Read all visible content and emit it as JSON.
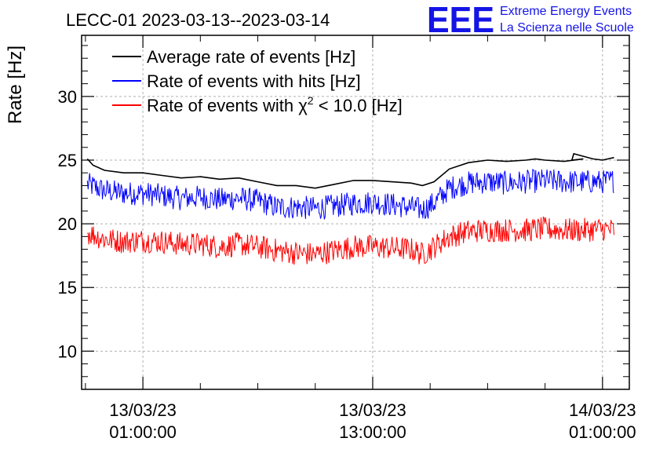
{
  "chart_data": {
    "type": "line",
    "title": "LECC-01 2023-03-13--2023-03-14",
    "ylabel": "Rate [Hz]",
    "xlabel": "",
    "ylim": [
      7,
      34.8
    ],
    "yticks": [
      10,
      15,
      20,
      25,
      30
    ],
    "xlim_hours": [
      -3.2,
      25.4
    ],
    "xticks": [
      {
        "hour": 0,
        "line1": "13/03/23",
        "line2": "01:00:00"
      },
      {
        "hour": 12,
        "line1": "13/03/23",
        "line2": "13:00:00"
      },
      {
        "hour": 24,
        "line1": "14/03/23",
        "line2": "01:00:00"
      }
    ],
    "grid": true,
    "legend_position": "top-left",
    "series": [
      {
        "name": "Average rate of events [Hz]",
        "color": "#000000",
        "x": [
          -2.9,
          -2.6,
          -2.0,
          -1.0,
          0.0,
          1.0,
          2.0,
          3.0,
          4.0,
          5.0,
          6.0,
          7.0,
          8.0,
          9.0,
          10.0,
          11.0,
          12.0,
          13.0,
          14.0,
          14.6,
          15.2,
          16.0,
          17.0,
          18.0,
          19.0,
          20.0,
          20.5,
          21.0,
          22.0,
          23.0,
          22.4,
          22.5,
          23.5,
          24.0,
          24.6
        ],
        "y": [
          25.1,
          24.6,
          24.2,
          24.0,
          24.0,
          23.8,
          23.6,
          23.7,
          23.5,
          23.6,
          23.3,
          23.0,
          23.0,
          22.8,
          23.1,
          23.4,
          23.4,
          23.3,
          23.2,
          23.0,
          23.3,
          24.3,
          24.8,
          25.0,
          24.9,
          25.0,
          25.1,
          25.0,
          24.9,
          25.1,
          25.0,
          25.5,
          25.1,
          25.0,
          25.2
        ]
      },
      {
        "name": "Rate of events with hits [Hz]",
        "color": "#0000ff",
        "x": [
          -2.9,
          -2.0,
          -1.0,
          0.0,
          1.0,
          2.0,
          3.0,
          4.0,
          5.0,
          6.0,
          7.0,
          8.0,
          9.0,
          10.0,
          11.0,
          12.0,
          13.0,
          14.0,
          14.6,
          15.2,
          16.0,
          17.0,
          18.0,
          19.0,
          20.0,
          21.0,
          22.0,
          23.0,
          24.0,
          24.6
        ],
        "y": [
          23.1,
          22.6,
          22.4,
          22.4,
          22.2,
          22.0,
          22.1,
          21.9,
          22.0,
          21.8,
          21.3,
          21.3,
          21.2,
          21.4,
          21.6,
          21.7,
          21.5,
          21.3,
          21.1,
          21.6,
          22.8,
          23.2,
          23.3,
          23.2,
          23.3,
          23.4,
          23.3,
          23.3,
          23.3,
          23.4
        ]
      },
      {
        "name": "Rate of events with χ² < 10.0 [Hz]",
        "color": "#ff0000",
        "x": [
          -2.9,
          -2.0,
          -1.0,
          0.0,
          1.0,
          2.0,
          3.0,
          4.0,
          5.0,
          6.0,
          7.0,
          8.0,
          9.0,
          10.0,
          11.0,
          12.0,
          13.0,
          14.0,
          14.6,
          15.2,
          16.0,
          17.0,
          18.0,
          19.0,
          20.0,
          21.0,
          22.0,
          23.0,
          24.0,
          24.6
        ],
        "y": [
          19.3,
          18.8,
          18.6,
          18.7,
          18.6,
          18.4,
          18.4,
          18.2,
          18.4,
          18.2,
          17.9,
          17.7,
          17.6,
          17.9,
          18.2,
          18.2,
          18.1,
          18.0,
          17.6,
          18.2,
          19.0,
          19.4,
          19.5,
          19.5,
          19.5,
          19.6,
          19.5,
          19.5,
          19.6,
          19.5
        ]
      }
    ]
  },
  "logo": {
    "letters": "EEE",
    "line1": "Extreme Energy Events",
    "line2": "La Scienza nelle Scuole"
  },
  "legend": [
    {
      "label": "Average rate of events [Hz]",
      "color": "#000000"
    },
    {
      "label": "Rate of events with hits [Hz]",
      "color": "#0000ff"
    },
    {
      "label_pre": "Rate of events with ",
      "chi": "χ",
      "sup": "2",
      "label_post": " < 10.0 [Hz]",
      "color": "#ff0000"
    }
  ]
}
